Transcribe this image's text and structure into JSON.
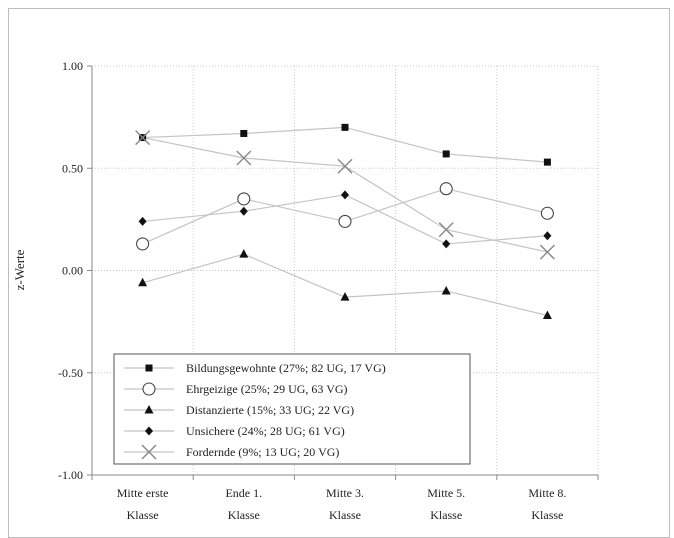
{
  "chart_data": {
    "type": "line",
    "title": "",
    "xlabel": "",
    "ylabel": "z-Werte",
    "ylim": [
      -1.0,
      1.0
    ],
    "yticks": [
      "1.00",
      "0.50",
      "0.00",
      "-0.50",
      "-1.00"
    ],
    "ytick_values": [
      1.0,
      0.5,
      0.0,
      -0.5,
      -1.0
    ],
    "categories": [
      [
        "Mitte erste",
        "Klasse"
      ],
      [
        "Ende 1.",
        "Klasse"
      ],
      [
        "Mitte 3.",
        "Klasse"
      ],
      [
        "Mitte 5.",
        "Klasse"
      ],
      [
        "Mitte 8.",
        "Klasse"
      ]
    ],
    "grid": "dotted",
    "legend_position": "bottom-left inside plot",
    "series": [
      {
        "name": "Bildungsgewohnte (27%; 82 UG, 17 VG)",
        "marker": "square",
        "values": [
          0.65,
          0.67,
          0.7,
          0.57,
          0.53
        ]
      },
      {
        "name": "Ehrgeizige (25%; 29 UG, 63 VG)",
        "marker": "circle-open",
        "values": [
          0.13,
          0.35,
          0.24,
          0.4,
          0.28
        ]
      },
      {
        "name": "Distanzierte (15%; 33 UG; 22 VG)",
        "marker": "triangle",
        "values": [
          -0.06,
          0.08,
          -0.13,
          -0.1,
          -0.22
        ]
      },
      {
        "name": "Unsichere (24%; 28 UG; 61 VG)",
        "marker": "diamond",
        "values": [
          0.24,
          0.29,
          0.37,
          0.13,
          0.17
        ]
      },
      {
        "name": "Fordernde (9%; 13 UG; 20 VG)",
        "marker": "cross",
        "values": [
          0.65,
          0.55,
          0.51,
          0.2,
          0.09
        ]
      }
    ],
    "colors": {
      "line": "#c4c4c4",
      "marker": "#111111",
      "grid": "#c8c8c8",
      "axis": "#8a8a8a"
    }
  }
}
